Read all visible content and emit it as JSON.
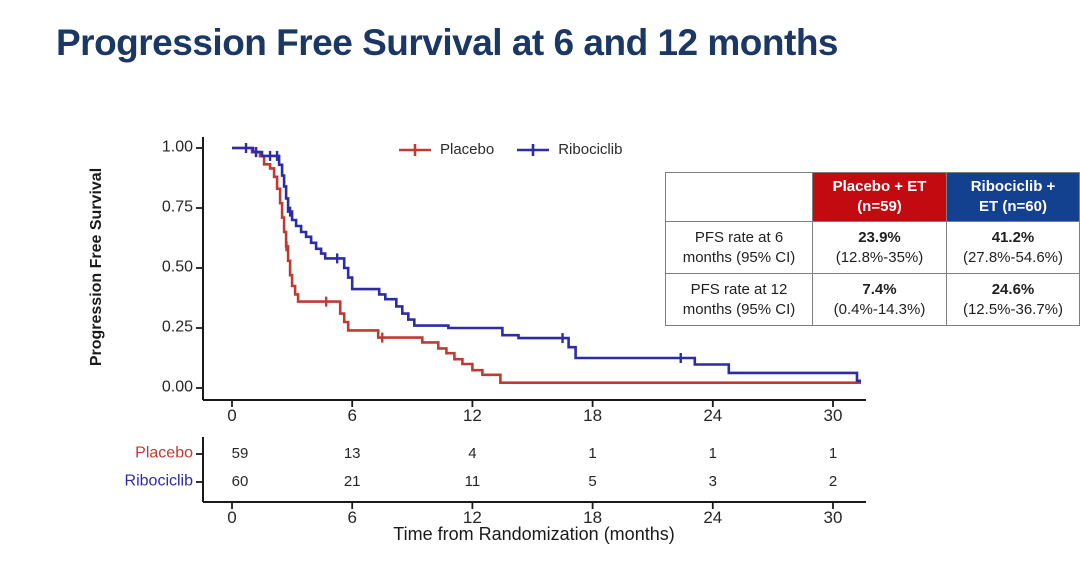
{
  "title": "Progression Free Survival at 6 and 12 months",
  "colors": {
    "title_navy": "#1B3864",
    "placebo_red": "#C13A32",
    "ribociclib_blue": "#2C2CA4",
    "header_red_bg": "#C30A10",
    "header_blue_bg": "#14418F",
    "axis_black": "#1a1a1a"
  },
  "chart_data": {
    "type": "line",
    "subtype": "kaplan-meier-step",
    "title": "",
    "xlabel": "Time from Randomization (months)",
    "ylabel": "Progression Free Survival",
    "xlim": [
      0,
      31.5
    ],
    "ylim": [
      0,
      1
    ],
    "grid": false,
    "legend_position": "top-center",
    "x_ticks": [
      0,
      6,
      12,
      18,
      24,
      30
    ],
    "y_ticks": [
      {
        "label": "1.00",
        "value": 1.0
      },
      {
        "label": "0.75",
        "value": 0.75
      },
      {
        "label": "0.50",
        "value": 0.5
      },
      {
        "label": "0.25",
        "value": 0.25
      },
      {
        "label": "0.00",
        "value": 0.0
      }
    ],
    "series": [
      {
        "name": "Placebo",
        "color": "#C13A32",
        "end": 31.4,
        "steps": [
          [
            0,
            1.0
          ],
          [
            1.0,
            0.983
          ],
          [
            1.4,
            0.966
          ],
          [
            1.6,
            0.932
          ],
          [
            1.9,
            0.915
          ],
          [
            2.1,
            0.88
          ],
          [
            2.25,
            0.83
          ],
          [
            2.4,
            0.77
          ],
          [
            2.5,
            0.71
          ],
          [
            2.6,
            0.65
          ],
          [
            2.7,
            0.59
          ],
          [
            2.8,
            0.53
          ],
          [
            2.9,
            0.47
          ],
          [
            3.0,
            0.425
          ],
          [
            3.15,
            0.39
          ],
          [
            3.3,
            0.36
          ],
          [
            5.4,
            0.31
          ],
          [
            5.6,
            0.275
          ],
          [
            5.8,
            0.24
          ],
          [
            7.3,
            0.21
          ],
          [
            9.5,
            0.19
          ],
          [
            10.3,
            0.165
          ],
          [
            10.7,
            0.145
          ],
          [
            11.1,
            0.12
          ],
          [
            11.5,
            0.1
          ],
          [
            12.0,
            0.074
          ],
          [
            12.5,
            0.055
          ],
          [
            13.4,
            0.022
          ]
        ],
        "censors": [
          [
            1.2,
            0.983
          ],
          [
            2.72,
            0.59
          ],
          [
            4.7,
            0.36
          ],
          [
            7.5,
            0.21
          ]
        ]
      },
      {
        "name": "Ribociclib",
        "color": "#2C2CA4",
        "end": 31.4,
        "steps": [
          [
            0,
            1.0
          ],
          [
            1.05,
            0.983
          ],
          [
            1.5,
            0.967
          ],
          [
            2.35,
            0.93
          ],
          [
            2.5,
            0.885
          ],
          [
            2.6,
            0.84
          ],
          [
            2.7,
            0.79
          ],
          [
            2.8,
            0.735
          ],
          [
            3.0,
            0.7
          ],
          [
            3.2,
            0.675
          ],
          [
            3.45,
            0.65
          ],
          [
            3.7,
            0.63
          ],
          [
            3.95,
            0.605
          ],
          [
            4.2,
            0.58
          ],
          [
            4.45,
            0.56
          ],
          [
            4.65,
            0.54
          ],
          [
            5.6,
            0.5
          ],
          [
            5.8,
            0.46
          ],
          [
            6.0,
            0.412
          ],
          [
            7.35,
            0.39
          ],
          [
            7.65,
            0.37
          ],
          [
            8.2,
            0.34
          ],
          [
            8.5,
            0.31
          ],
          [
            8.8,
            0.285
          ],
          [
            9.1,
            0.26
          ],
          [
            10.8,
            0.25
          ],
          [
            13.5,
            0.22
          ],
          [
            14.3,
            0.208
          ],
          [
            16.8,
            0.17
          ],
          [
            17.15,
            0.125
          ],
          [
            23.1,
            0.098
          ],
          [
            24.8,
            0.063
          ],
          [
            31.2,
            0.03
          ]
        ],
        "censors": [
          [
            0.7,
            1.0
          ],
          [
            1.2,
            0.983
          ],
          [
            1.9,
            0.967
          ],
          [
            2.25,
            0.967
          ],
          [
            2.9,
            0.735
          ],
          [
            5.25,
            0.54
          ],
          [
            16.5,
            0.208
          ],
          [
            22.4,
            0.125
          ]
        ]
      }
    ],
    "risk_table": {
      "times": [
        0,
        6,
        12,
        18,
        24,
        30
      ],
      "rows": [
        {
          "label": "Placebo",
          "color": "#C13A32",
          "values": [
            59,
            13,
            4,
            1,
            1,
            1
          ]
        },
        {
          "label": "Ribociclib",
          "color": "#2C2CA4",
          "values": [
            60,
            21,
            11,
            5,
            3,
            2
          ]
        }
      ]
    }
  },
  "stats_table": {
    "col_headers": [
      {
        "line1": "Placebo + ET",
        "line2": "(n=59)",
        "bg": "#C30A10"
      },
      {
        "line1": "Ribociclib +",
        "line2": "ET (n=60)",
        "bg": "#14418F"
      }
    ],
    "rows": [
      {
        "label1": "PFS rate at 6",
        "label2": "months (95% CI)",
        "cells": [
          {
            "value": "23.9%",
            "ci": "(12.8%-35%)"
          },
          {
            "value": "41.2%",
            "ci": "(27.8%-54.6%)"
          }
        ]
      },
      {
        "label1": "PFS rate at 12",
        "label2": "months (95% CI)",
        "cells": [
          {
            "value": "7.4%",
            "ci": "(0.4%-14.3%)"
          },
          {
            "value": "24.6%",
            "ci": "(12.5%-36.7%)"
          }
        ]
      }
    ]
  }
}
